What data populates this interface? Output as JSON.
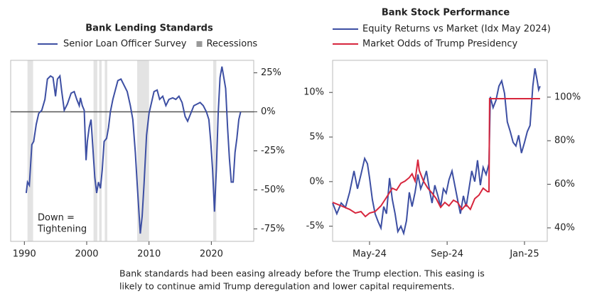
{
  "chart_data": [
    {
      "type": "line",
      "title": "Bank Lending Standards",
      "series": [
        {
          "name": "Senior Loan Officer Survey",
          "color": "#3d4fa3",
          "x": [
            1990.3,
            1990.5,
            1990.8,
            1991.2,
            1991.5,
            1991.9,
            1992.3,
            1992.8,
            1993.3,
            1993.7,
            1994.2,
            1994.6,
            1995.0,
            1995.3,
            1995.7,
            1996.0,
            1996.4,
            1996.9,
            1997.5,
            1998.0,
            1998.4,
            1998.8,
            1999.0,
            1999.3,
            1999.6,
            1999.9,
            2000.1,
            2000.4,
            2000.7,
            2001.0,
            2001.3,
            2001.6,
            2001.9,
            2002.2,
            2002.5,
            2002.8,
            2003.2,
            2003.5,
            2003.8,
            2004.2,
            2004.6,
            2005.0,
            2005.5,
            2006.0,
            2006.5,
            2007.0,
            2007.4,
            2007.8,
            2008.1,
            2008.4,
            2008.6,
            2008.9,
            2009.2,
            2009.6,
            2010.0,
            2010.4,
            2010.8,
            2011.3,
            2011.7,
            2012.2,
            2012.7,
            2013.2,
            2013.8,
            2014.3,
            2014.8,
            2015.3,
            2015.8,
            2016.2,
            2016.7,
            2017.2,
            2017.7,
            2018.2,
            2018.7,
            2019.2,
            2019.6,
            2019.9,
            2020.2,
            2020.5,
            2020.8,
            2021.1,
            2021.4,
            2021.7,
            2022.0,
            2022.3,
            2022.6,
            2022.9,
            2023.2,
            2023.5,
            2023.8,
            2024.1,
            2024.4,
            2024.7
          ],
          "values": [
            -52,
            -45,
            -47,
            -21,
            -19,
            -8,
            -1,
            1,
            8,
            21,
            23,
            22,
            10,
            21,
            23,
            13,
            1,
            5,
            12,
            13,
            8,
            4,
            9,
            4,
            1,
            -31,
            -19,
            -10,
            -5,
            -24,
            -42,
            -52,
            -45,
            -49,
            -37,
            -19,
            -17,
            -10,
            0,
            8,
            14,
            20,
            21,
            17,
            13,
            4,
            -5,
            -26,
            -46,
            -65,
            -78,
            -67,
            -46,
            -15,
            -1,
            6,
            13,
            14,
            8,
            10,
            4,
            8,
            9,
            8,
            10,
            6,
            -3,
            -6,
            -1,
            4,
            5,
            6,
            4,
            0,
            -5,
            -19,
            -37,
            -64,
            -37,
            -1,
            22,
            29,
            22,
            15,
            -10,
            -30,
            -45,
            -45,
            -26,
            -17,
            -5,
            0
          ]
        }
      ],
      "shaded": {
        "name": "Recessions",
        "color": "#e3e3e3",
        "ranges": [
          [
            1990.5,
            1991.4
          ],
          [
            2001.1,
            2001.7
          ],
          [
            2002.0,
            2002.4
          ],
          [
            2002.9,
            2003.3
          ],
          [
            2008.1,
            2010.0
          ],
          [
            2020.3,
            2020.8
          ]
        ]
      },
      "annotation": [
        "Down =",
        "Tightening"
      ],
      "xlim": [
        1987.8,
        2026.8
      ],
      "xticks": [
        1990,
        2000,
        2010,
        2020
      ],
      "ylim": [
        -83,
        33
      ],
      "yticks": [
        {
          "value": 25,
          "label": "25%"
        },
        {
          "value": 0,
          "label": "0%"
        },
        {
          "value": -25,
          "label": "-25%"
        },
        {
          "value": -50,
          "label": "-50%"
        },
        {
          "value": -75,
          "label": "-75%"
        }
      ],
      "zero_line": true,
      "yaxis_side": "right"
    },
    {
      "type": "line",
      "title": "Bank Stock Performance",
      "series": [
        {
          "name": "Equity Returns vs Market (Idx May 2024)",
          "color": "#3d4fa3",
          "axis": "y",
          "x": [
            2024.174,
            2024.192,
            2024.211,
            2024.229,
            2024.247,
            2024.266,
            2024.281,
            2024.296,
            2024.312,
            2024.324,
            2024.333,
            2024.345,
            2024.357,
            2024.37,
            2024.382,
            2024.394,
            2024.406,
            2024.419,
            2024.431,
            2024.443,
            2024.455,
            2024.468,
            2024.48,
            2024.492,
            2024.504,
            2024.516,
            2024.529,
            2024.541,
            2024.553,
            2024.565,
            2024.578,
            2024.59,
            2024.602,
            2024.614,
            2024.627,
            2024.639,
            2024.651,
            2024.663,
            2024.675,
            2024.688,
            2024.7,
            2024.712,
            2024.724,
            2024.737,
            2024.749,
            2024.761,
            2024.773,
            2024.786,
            2024.798,
            2024.81,
            2024.822,
            2024.835,
            2024.847,
            2024.853,
            2024.865,
            2024.877,
            2024.89,
            2024.902,
            2024.914,
            2024.926,
            2024.939,
            2024.951,
            2024.963,
            2024.975,
            2024.987,
            2025.0,
            2025.012,
            2025.024,
            2025.036,
            2025.045,
            2025.055,
            2025.061,
            2025.067
          ],
          "values": [
            -2.4,
            -3.6,
            -2.4,
            -2.9,
            -1.2,
            1.2,
            -0.8,
            0.8,
            2.6,
            2.0,
            0.4,
            -2.0,
            -3.6,
            -4.5,
            -5.2,
            -2.8,
            -3.6,
            0.4,
            -2.0,
            -3.6,
            -5.6,
            -5.0,
            -5.8,
            -4.4,
            -1.2,
            -2.8,
            -1.2,
            0.8,
            -0.8,
            0,
            1.2,
            -0.8,
            -2.4,
            -0.4,
            -1.6,
            -2.8,
            -0.8,
            -1.3,
            0.2,
            1.2,
            -0.4,
            -2.0,
            -3.6,
            -1.6,
            -2.8,
            -0.8,
            1.2,
            0,
            2.4,
            -0.4,
            1.6,
            0.8,
            2.0,
            9.5,
            8.3,
            9.1,
            10.7,
            11.3,
            9.9,
            6.7,
            5.6,
            4.4,
            4.0,
            5.2,
            3.2,
            4.4,
            5.6,
            6.3,
            10.7,
            12.7,
            11.3,
            10.3,
            10.7
          ]
        },
        {
          "name": "Market Odds of Trump Presidency",
          "color": "#d7263d",
          "axis": "y2",
          "x": [
            2024.174,
            2024.211,
            2024.247,
            2024.272,
            2024.296,
            2024.315,
            2024.333,
            2024.357,
            2024.382,
            2024.406,
            2024.431,
            2024.449,
            2024.468,
            2024.486,
            2024.504,
            2024.516,
            2024.529,
            2024.541,
            2024.547,
            2024.565,
            2024.584,
            2024.602,
            2024.62,
            2024.639,
            2024.657,
            2024.675,
            2024.694,
            2024.712,
            2024.731,
            2024.749,
            2024.767,
            2024.786,
            2024.804,
            2024.822,
            2024.841,
            2024.847,
            2024.85,
            2024.884,
            2024.945,
            2025.006,
            2025.067
          ],
          "values": [
            51.7,
            50.1,
            48.5,
            46.8,
            47.5,
            45.2,
            46.8,
            47.5,
            50.1,
            54.0,
            58.2,
            57.3,
            60.5,
            61.5,
            63.1,
            64.8,
            61.5,
            71.3,
            66.4,
            61.5,
            58.2,
            56.0,
            53.4,
            49.4,
            51.7,
            50.1,
            52.7,
            51.7,
            48.5,
            50.7,
            48.5,
            53.4,
            55.0,
            58.2,
            56.6,
            56.6,
            99.3,
            99.3,
            99.3,
            99.3,
            99.3
          ]
        }
      ],
      "xlim": [
        2024.174,
        2025.098
      ],
      "xticks": [
        {
          "value": 2024.333,
          "label": "May-24"
        },
        {
          "value": 2024.667,
          "label": "Sep-24"
        },
        {
          "value": 2025.0,
          "label": "Jan-25"
        }
      ],
      "ylim": [
        -6.7,
        13.6
      ],
      "yticks": [
        {
          "value": 10,
          "label": "10%"
        },
        {
          "value": 5,
          "label": "5%"
        },
        {
          "value": 0,
          "label": "0%"
        },
        {
          "value": -5,
          "label": "-5%"
        }
      ],
      "y2lim": [
        33.8,
        116.9
      ],
      "y2ticks": [
        {
          "value": 100,
          "label": "100%"
        },
        {
          "value": 80,
          "label": "80%"
        },
        {
          "value": 60,
          "label": "60%"
        },
        {
          "value": 40,
          "label": "40%"
        }
      ],
      "yaxis_side": "left"
    }
  ],
  "caption": [
    "Bank standards had been easing already before the Trump election. This easing is",
    "likely to continue amid Trump deregulation and lower capital requirements."
  ]
}
